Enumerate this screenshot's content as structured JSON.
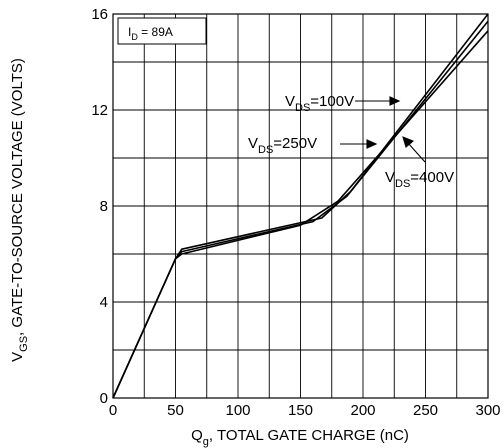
{
  "chart_data": {
    "type": "line",
    "x_axis": {
      "label_main": "Q",
      "label_sub": "g",
      "label_rest": ", TOTAL GATE CHARGE (nC)",
      "ticks": [
        0,
        50,
        100,
        150,
        200,
        250,
        300
      ],
      "range": [
        0,
        300
      ]
    },
    "y_axis": {
      "label_main": "V",
      "label_sub": "GS",
      "label_rest": ", GATE-TO-SOURCE VOLTAGE (VOLTS)",
      "ticks": [
        0,
        4,
        8,
        12,
        16
      ],
      "range": [
        0,
        16
      ]
    },
    "grid": true,
    "info_box": {
      "main": "I",
      "sub": "D",
      "rest": " = 89A"
    },
    "series": [
      {
        "name": "VDS=100V",
        "label_main": "V",
        "label_sub": "DS",
        "label_rest": "=100V",
        "x": [
          0,
          50,
          55,
          150,
          180,
          300
        ],
        "y": [
          0,
          5.8,
          6.0,
          7.2,
          8.2,
          15.3
        ]
      },
      {
        "name": "VDS=250V",
        "label_main": "V",
        "label_sub": "DS",
        "label_rest": "=250V",
        "x": [
          0,
          50,
          55,
          160,
          187,
          300
        ],
        "y": [
          0,
          5.8,
          6.1,
          7.35,
          8.4,
          15.7
        ]
      },
      {
        "name": "VDS=400V",
        "label_main": "V",
        "label_sub": "DS",
        "label_rest": "=400V",
        "x": [
          0,
          50,
          55,
          167,
          190,
          300
        ],
        "y": [
          0,
          5.8,
          6.2,
          7.5,
          8.6,
          16.0
        ]
      }
    ],
    "line_color": "#000000",
    "grid_color": "#000000"
  }
}
